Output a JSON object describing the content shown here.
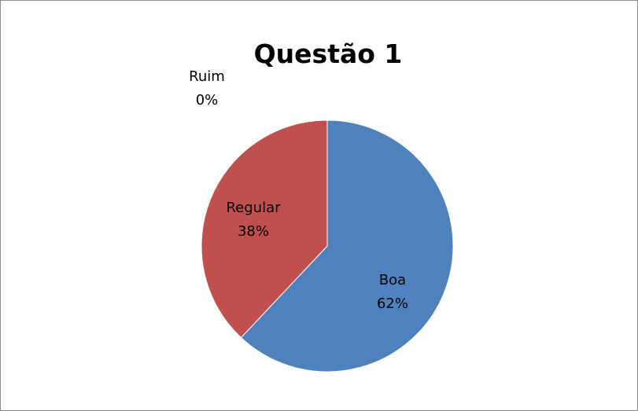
{
  "chart_data": {
    "type": "pie",
    "title": "Questão 1",
    "slices": [
      {
        "label": "Boa",
        "value": 62,
        "value_text": "62%",
        "color": "#4f81bd"
      },
      {
        "label": "Regular",
        "value": 38,
        "value_text": "38%",
        "color": "#c0504d"
      },
      {
        "label": "Ruim",
        "value": 0,
        "value_text": "0%",
        "color": "#9bbb59"
      }
    ],
    "start": "12 o'clock",
    "direction": "clockwise",
    "data_labels": "category and percentage",
    "legend": "none"
  }
}
